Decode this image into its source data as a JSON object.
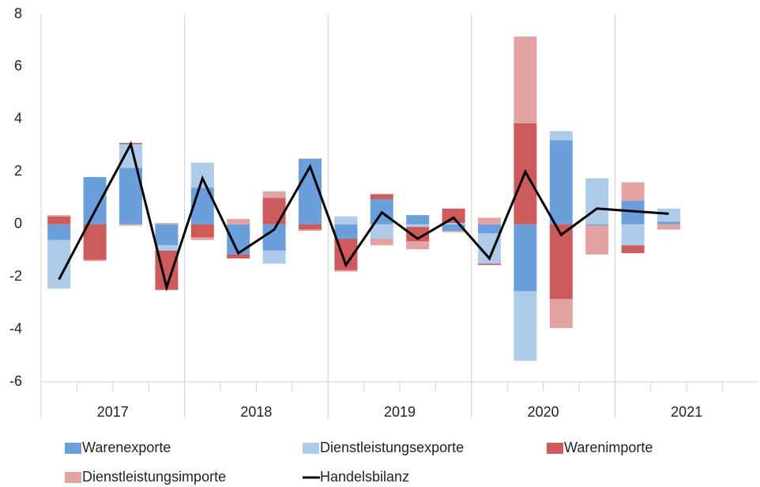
{
  "chart_data": {
    "type": "bar",
    "stacked": true,
    "categories": [
      null,
      null,
      null,
      null,
      null,
      null,
      null,
      null,
      null,
      null,
      null,
      null,
      null,
      null,
      null,
      null,
      null,
      null,
      null,
      null
    ],
    "groups": [
      "2017",
      "2018",
      "2019",
      "2020",
      "2021"
    ],
    "ylim": [
      -6,
      8
    ],
    "yticks": [
      -6,
      -4,
      -2,
      0,
      2,
      4,
      6,
      8
    ],
    "series": [
      {
        "name": "Warenexporte",
        "type": "bar",
        "color": "#6a9fdc",
        "values": [
          -0.6,
          1.8,
          2.15,
          -0.8,
          1.4,
          -1.15,
          -1.0,
          2.5,
          -0.55,
          0.95,
          0.35,
          -0.25,
          -0.35,
          -2.55,
          3.2,
          -0.05,
          0.9,
          0.1,
          null,
          null
        ]
      },
      {
        "name": "Dienstleistungsexporte",
        "type": "bar",
        "color": "#aecbea",
        "values": [
          -1.85,
          0,
          0.9,
          -0.2,
          0.95,
          0,
          -0.5,
          0,
          0.3,
          -0.55,
          -0.1,
          0.05,
          -1.15,
          -2.65,
          0.35,
          1.75,
          -0.8,
          0.5,
          null,
          null
        ]
      },
      {
        "name": "Warenimporte",
        "type": "bar",
        "color": "#cd5b5b",
        "values": [
          0.3,
          -1.35,
          0.05,
          -1.5,
          -0.5,
          -0.15,
          1.0,
          -0.2,
          -1.2,
          0.2,
          -0.55,
          0.55,
          -0.05,
          3.85,
          -2.85,
          0,
          -0.3,
          0,
          null,
          null
        ]
      },
      {
        "name": "Dienstleistungsimporte",
        "type": "bar",
        "color": "#e3a3a3",
        "values": [
          0.05,
          -0.05,
          -0.05,
          0.05,
          -0.1,
          0.2,
          0.25,
          -0.05,
          -0.05,
          -0.25,
          -0.3,
          -0.05,
          0.25,
          3.3,
          -1.1,
          -1.1,
          0.7,
          -0.2,
          null,
          null
        ]
      },
      {
        "name": "Handelsbilanz",
        "type": "line",
        "color": "#000000",
        "values": [
          -2.1,
          0.5,
          3.05,
          -2.4,
          1.75,
          -1.1,
          -0.2,
          2.2,
          -1.55,
          0.45,
          -0.55,
          0.25,
          -1.3,
          2.0,
          -0.4,
          0.6,
          0.5,
          0.4,
          null,
          null
        ]
      }
    ]
  }
}
